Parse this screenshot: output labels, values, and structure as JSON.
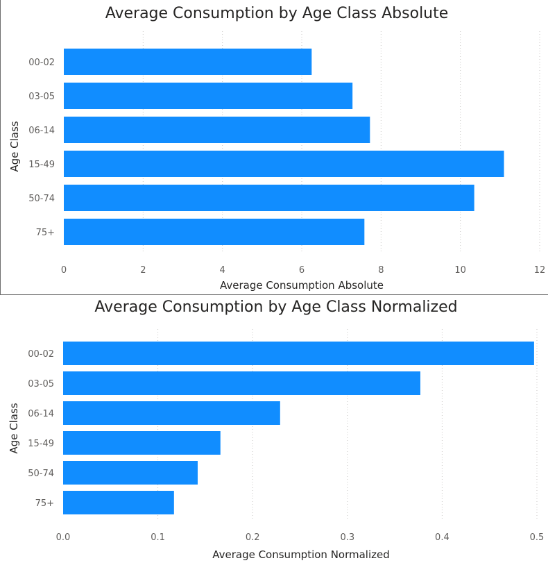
{
  "chart_data": [
    {
      "type": "bar",
      "orientation": "horizontal",
      "title": "Average Consumption by Age Class Absolute",
      "xlabel": "Average Consumption Absolute",
      "ylabel": "Age Class",
      "categories": [
        "00-02",
        "03-05",
        "06-14",
        "15-49",
        "50-74",
        "75+"
      ],
      "values": [
        6.25,
        7.28,
        7.72,
        11.1,
        10.35,
        7.58
      ],
      "xlim": [
        0,
        12
      ],
      "xticks": [
        0,
        2,
        4,
        6,
        8,
        10,
        12
      ],
      "xtick_labels": [
        "0",
        "2",
        "4",
        "6",
        "8",
        "10",
        "12"
      ],
      "grid": true,
      "color": "#118dff"
    },
    {
      "type": "bar",
      "orientation": "horizontal",
      "title": "Average Consumption by Age Class Normalized",
      "xlabel": "Average Consumption Normalized",
      "ylabel": "Age Class",
      "categories": [
        "00-02",
        "03-05",
        "06-14",
        "15-49",
        "50-74",
        "75+"
      ],
      "values": [
        0.497,
        0.377,
        0.229,
        0.166,
        0.142,
        0.117
      ],
      "xlim": [
        0,
        0.5
      ],
      "xticks": [
        0,
        0.1,
        0.2,
        0.3,
        0.4,
        0.5
      ],
      "xtick_labels": [
        "0.0",
        "0.1",
        "0.2",
        "0.3",
        "0.4",
        "0.5"
      ],
      "grid": true,
      "color": "#118dff"
    }
  ]
}
